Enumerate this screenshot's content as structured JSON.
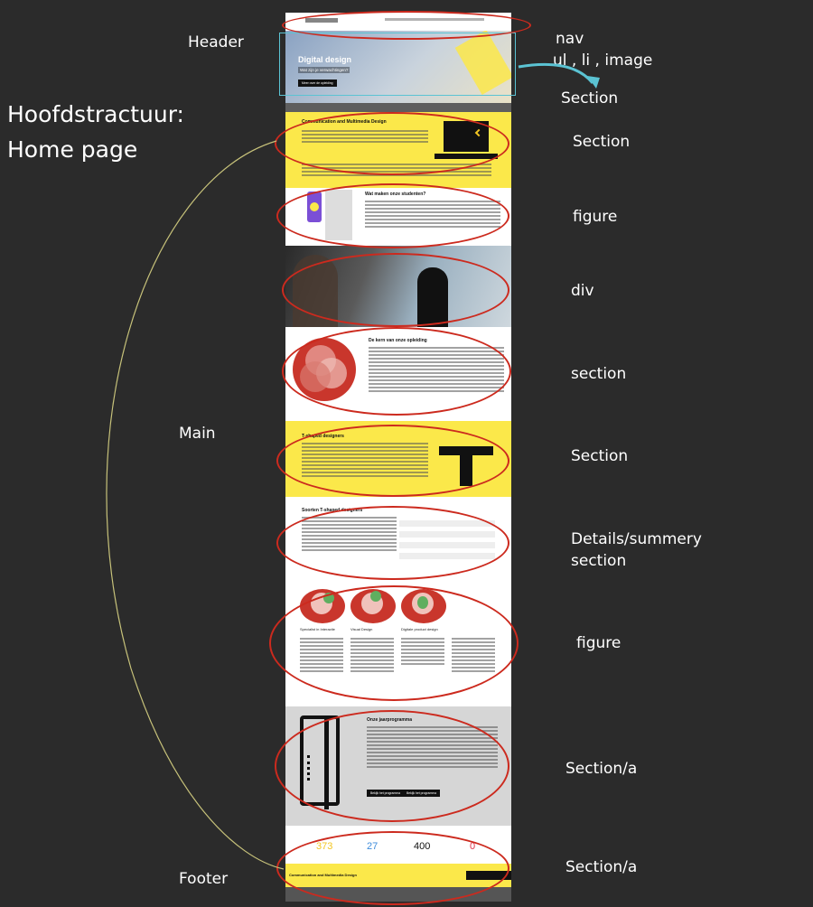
{
  "heading": {
    "line1": "Hoofdstractuur:",
    "line2": "Home page"
  },
  "left_labels": {
    "header": "Header",
    "main": "Main",
    "footer": "Footer"
  },
  "right_labels": {
    "nav": "nav",
    "nav_items": "ul , li , image",
    "section_hero": "Section",
    "section1": "Section",
    "figure1": "figure",
    "div1": "div",
    "section2": "section",
    "section3": "Section",
    "details1": "Details/summery",
    "details2": "section",
    "figure2": "figure",
    "section_a1": "Section/a",
    "section_a2": "Section/a"
  },
  "mock": {
    "hero_title": "Digital design",
    "hero_sub": "Wat zijn je verwachtingen?",
    "hero_button": "Meer over de opleiding",
    "s1_title": "Communication and Multimedia Design",
    "s2_title": "Wat maken onze studenten?",
    "s3_title": "De kern van onze opleiding",
    "s4_title": "T-shaped designers",
    "s5_title": "Soorten T-shaped designers",
    "s6_title": "Onze jaarprogramma",
    "s6_btn1": "Bekijk het programma",
    "s6_btn2": "Bekijk het programma",
    "figure_captions": [
      "Specialist in Interactie",
      "Visual Design",
      "Digitale product design"
    ],
    "stats": [
      {
        "value": "373",
        "color": "#f3c623"
      },
      {
        "value": "27",
        "color": "#3d8bdb"
      },
      {
        "value": "400",
        "color": "#111111"
      },
      {
        "value": "0",
        "color": "#e0344a"
      }
    ],
    "footer_banner": "Communication and Multimedia Design"
  },
  "colors": {
    "annotation": "#cc2a1e",
    "hero_box": "#5bc3d3",
    "connector": "#c7c27a",
    "accent_yellow": "#fbe84a"
  }
}
